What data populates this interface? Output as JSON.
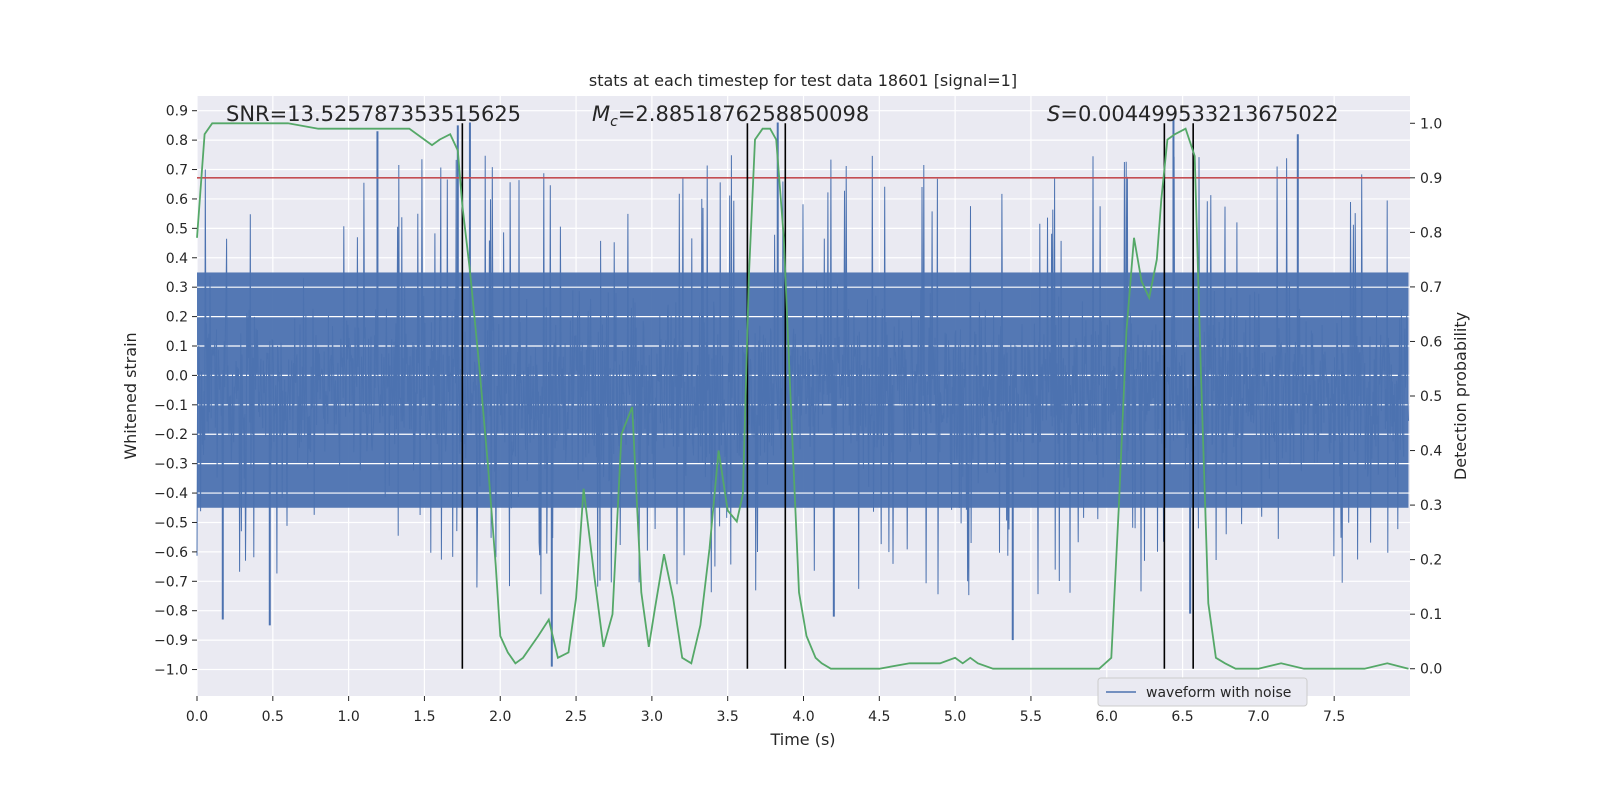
{
  "chart_data": {
    "type": "line",
    "title": "stats at each timestep for test data 18601 [signal=1]",
    "xlabel": "Time (s)",
    "ylabel": "Whitened strain",
    "y2label": "Detection probability",
    "xlim": [
      0.0,
      8.0
    ],
    "ylim": [
      -1.09,
      0.95
    ],
    "y2lim": [
      -0.05,
      1.05
    ],
    "xticks": [
      0.0,
      0.5,
      1.0,
      1.5,
      2.0,
      2.5,
      3.0,
      3.5,
      4.0,
      4.5,
      5.0,
      5.5,
      6.0,
      6.5,
      7.0,
      7.5
    ],
    "xtick_labels": [
      "0.0",
      "0.5",
      "1.0",
      "1.5",
      "2.0",
      "2.5",
      "3.0",
      "3.5",
      "4.0",
      "4.5",
      "5.0",
      "5.5",
      "6.0",
      "6.5",
      "7.0",
      "7.5"
    ],
    "yticks": [
      0.9,
      0.8,
      0.7,
      0.6,
      0.5,
      0.4,
      0.3,
      0.2,
      0.1,
      0.0,
      -0.1,
      -0.2,
      -0.3,
      -0.4,
      -0.5,
      -0.6,
      -0.7,
      -0.8,
      -0.9,
      -1.0
    ],
    "ytick_labels": [
      "0.9",
      "0.8",
      "0.7",
      "0.6",
      "0.5",
      "0.4",
      "0.3",
      "0.2",
      "0.1",
      "0.0",
      "−0.1",
      "−0.2",
      "−0.3",
      "−0.4",
      "−0.5",
      "−0.6",
      "−0.7",
      "−0.8",
      "−0.9",
      "−1.0"
    ],
    "y2ticks": [
      0.0,
      0.1,
      0.2,
      0.3,
      0.4,
      0.5,
      0.6,
      0.7,
      0.8,
      0.9,
      1.0
    ],
    "y2tick_labels": [
      "0.0",
      "0.1",
      "0.2",
      "0.3",
      "0.4",
      "0.5",
      "0.6",
      "0.7",
      "0.8",
      "0.9",
      "1.0"
    ],
    "grid": true,
    "legend": {
      "location": "lower center",
      "entries": [
        "waveform with noise"
      ]
    },
    "annotations": {
      "snr": "SNR=13.525787353515625",
      "mc_symbol": "M",
      "mc_sub": "c",
      "mc_value": "=2.8851876258850098",
      "s_symbol": "S",
      "s_value": "=0.004499533213675022"
    },
    "series": [
      {
        "name": "waveform with noise",
        "axis": "left",
        "style": "noisy waveform",
        "color": "#4c72b0",
        "x_range": [
          0.0,
          7.99
        ],
        "core_band": [
          -0.45,
          0.35
        ],
        "extremes": [
          -1.0,
          0.87
        ],
        "peaks": [
          {
            "x": 1.8,
            "y": 0.86
          },
          {
            "x": 1.72,
            "y": 0.85
          },
          {
            "x": 3.83,
            "y": 0.86
          },
          {
            "x": 6.44,
            "y": 0.87
          },
          {
            "x": 2.34,
            "y": -0.99
          },
          {
            "x": 0.17,
            "y": -0.83
          },
          {
            "x": 0.48,
            "y": -0.85
          },
          {
            "x": 5.38,
            "y": -0.9
          },
          {
            "x": 6.55,
            "y": -0.81
          },
          {
            "x": 4.2,
            "y": -0.82
          },
          {
            "x": 1.19,
            "y": 0.83
          },
          {
            "x": 7.26,
            "y": 0.82
          }
        ]
      },
      {
        "name": "",
        "axis": "right",
        "color": "#55a868",
        "x": [
          0.0,
          0.05,
          0.1,
          0.2,
          0.4,
          0.6,
          0.8,
          1.0,
          1.1,
          1.2,
          1.3,
          1.4,
          1.5,
          1.55,
          1.6,
          1.67,
          1.72,
          1.75,
          1.8,
          1.86,
          1.92,
          1.97,
          2.0,
          2.05,
          2.1,
          2.15,
          2.2,
          2.25,
          2.32,
          2.38,
          2.45,
          2.5,
          2.55,
          2.62,
          2.68,
          2.74,
          2.8,
          2.87,
          2.93,
          2.98,
          3.02,
          3.08,
          3.14,
          3.2,
          3.26,
          3.32,
          3.38,
          3.44,
          3.5,
          3.56,
          3.6,
          3.64,
          3.68,
          3.73,
          3.78,
          3.82,
          3.87,
          3.92,
          3.97,
          4.02,
          4.08,
          4.12,
          4.18,
          4.3,
          4.5,
          4.7,
          4.9,
          5.0,
          5.05,
          5.1,
          5.15,
          5.25,
          5.35,
          5.45,
          5.6,
          5.8,
          5.95,
          6.03,
          6.08,
          6.13,
          6.18,
          6.23,
          6.28,
          6.33,
          6.36,
          6.4,
          6.45,
          6.52,
          6.58,
          6.62,
          6.67,
          6.72,
          6.78,
          6.85,
          7.0,
          7.15,
          7.3,
          7.5,
          7.7,
          7.85,
          7.99
        ],
        "y": [
          0.79,
          0.98,
          1.0,
          1.0,
          1.0,
          1.0,
          0.99,
          0.99,
          0.99,
          0.99,
          0.99,
          0.99,
          0.97,
          0.96,
          0.97,
          0.98,
          0.95,
          0.85,
          0.73,
          0.56,
          0.37,
          0.19,
          0.06,
          0.03,
          0.01,
          0.02,
          0.04,
          0.06,
          0.09,
          0.02,
          0.03,
          0.13,
          0.33,
          0.17,
          0.04,
          0.1,
          0.43,
          0.48,
          0.14,
          0.04,
          0.11,
          0.21,
          0.13,
          0.02,
          0.01,
          0.08,
          0.22,
          0.4,
          0.29,
          0.27,
          0.32,
          0.72,
          0.97,
          0.99,
          0.99,
          0.97,
          0.79,
          0.46,
          0.14,
          0.06,
          0.02,
          0.01,
          0.0,
          0.0,
          0.0,
          0.01,
          0.01,
          0.02,
          0.01,
          0.02,
          0.01,
          0.0,
          0.0,
          0.0,
          0.0,
          0.0,
          0.0,
          0.02,
          0.3,
          0.62,
          0.79,
          0.71,
          0.68,
          0.75,
          0.86,
          0.97,
          0.98,
          0.99,
          0.94,
          0.55,
          0.12,
          0.02,
          0.01,
          0.0,
          0.0,
          0.01,
          0.0,
          0.0,
          0.0,
          0.01,
          0.0
        ]
      }
    ],
    "threshold_line": {
      "axis": "right",
      "y": 0.9,
      "color": "#c44e52"
    },
    "vertical_lines": {
      "color": "#000000",
      "x": [
        1.75,
        3.63,
        3.88,
        6.38,
        6.57
      ],
      "y_from": 0.0,
      "y_to": 1.0
    },
    "colors": {
      "plot_background": "#eaeaf2",
      "grid": "#ffffff",
      "waveform": "#4c72b0",
      "probability": "#55a868",
      "threshold": "#c44e52"
    }
  }
}
